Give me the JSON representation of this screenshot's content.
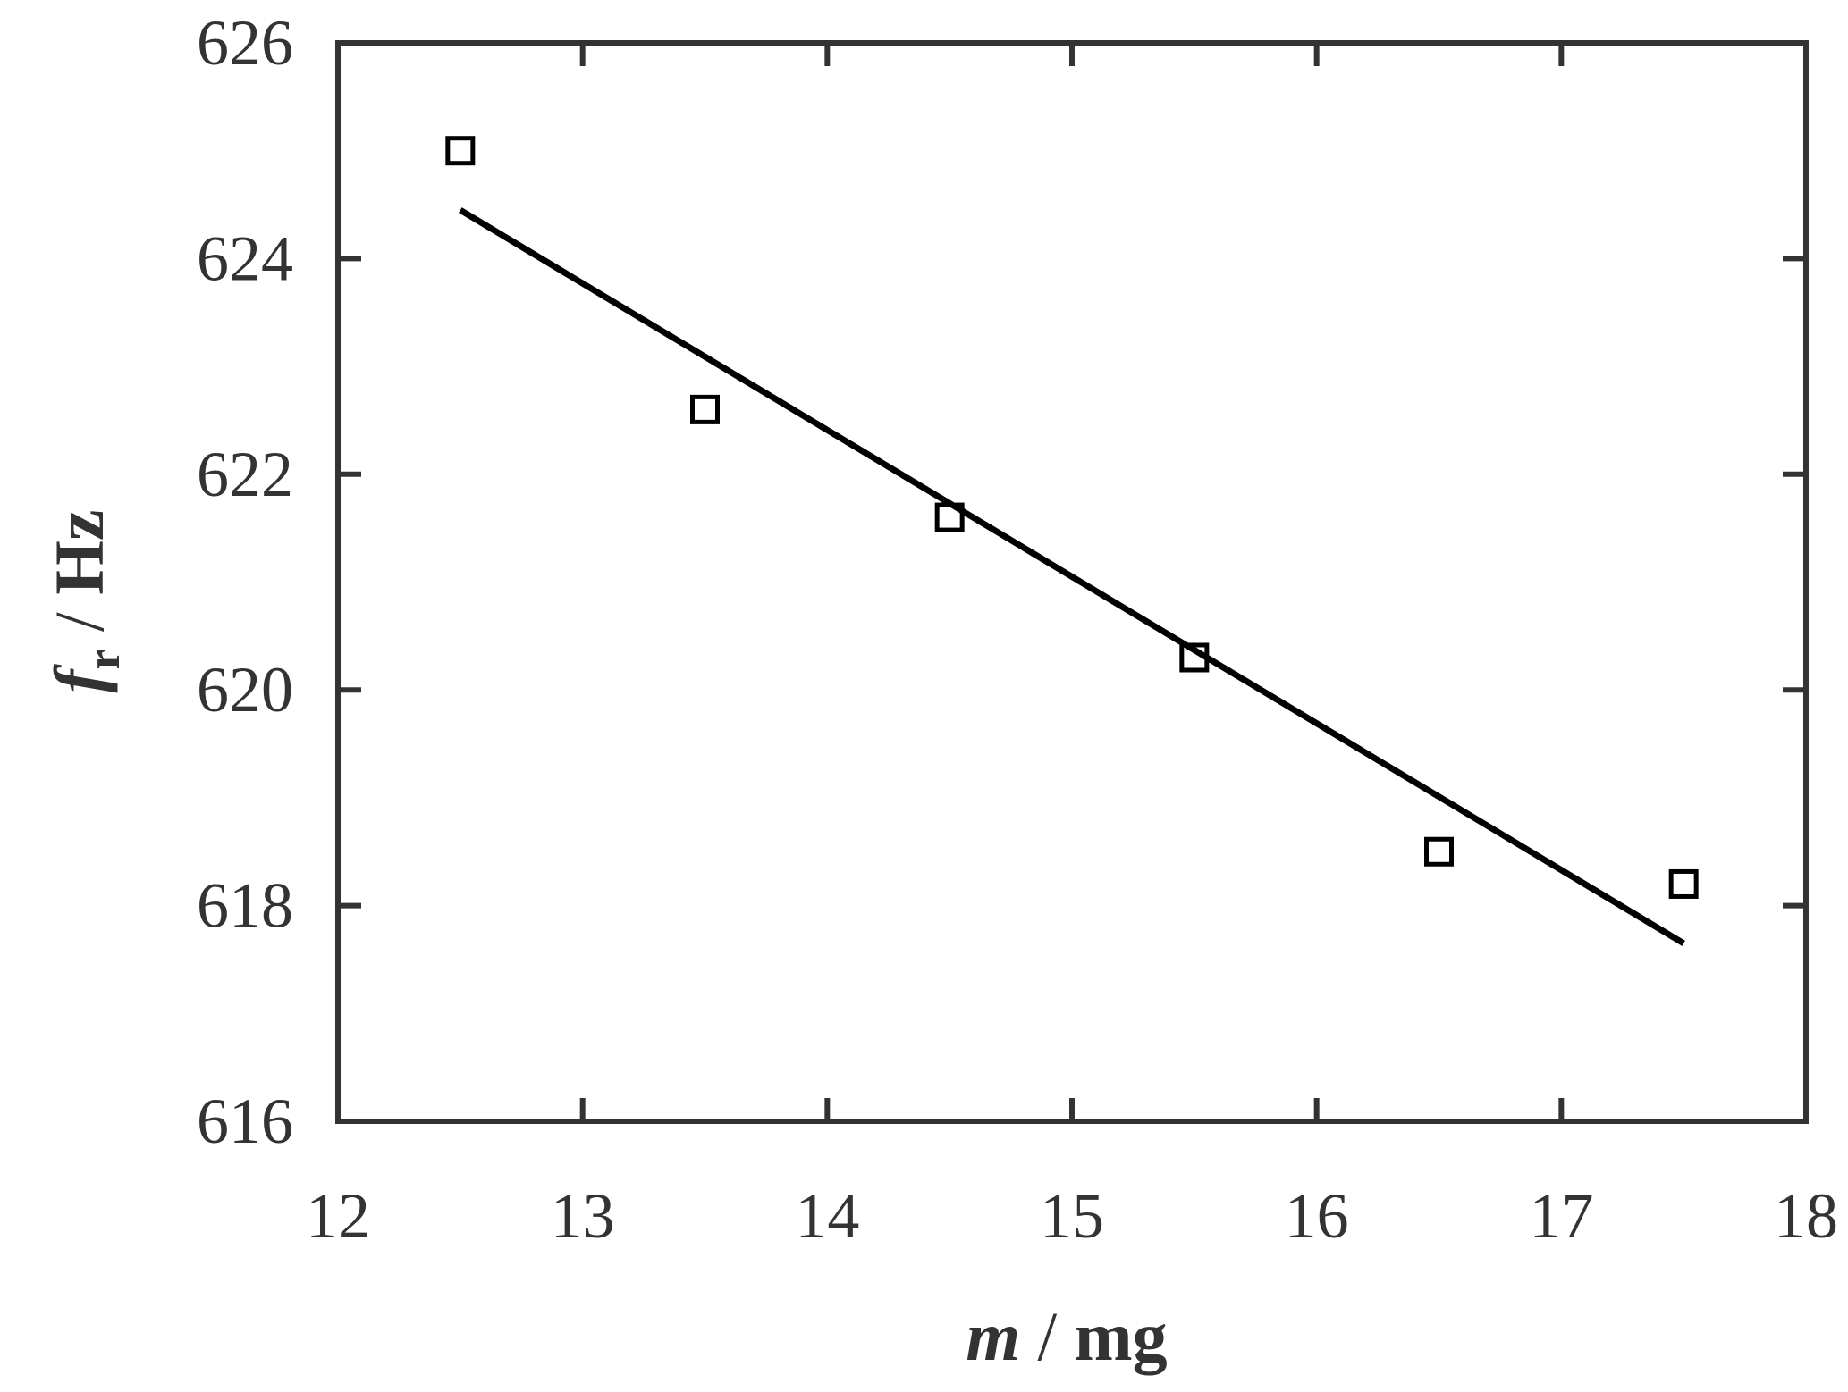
{
  "chart_data": {
    "type": "scatter",
    "xlim": [
      12,
      18
    ],
    "ylim": [
      616,
      626
    ],
    "x_ticks": [
      12,
      13,
      14,
      15,
      16,
      17,
      18
    ],
    "y_ticks": [
      616,
      618,
      620,
      622,
      624,
      626
    ],
    "xlabel": {
      "var": "m",
      "sep": " / ",
      "unit": "mg"
    },
    "ylabel": {
      "var": "f",
      "sub": "r",
      "sep": " / ",
      "unit": "Hz"
    },
    "grid": false,
    "series": [
      {
        "kind": "points",
        "marker": "open-square",
        "x": [
          12.5,
          13.5,
          14.5,
          15.5,
          16.5,
          17.5
        ],
        "y": [
          625.0,
          622.6,
          621.6,
          620.3,
          618.5,
          618.2
        ]
      },
      {
        "kind": "fit-line",
        "x": [
          12.5,
          17.5
        ],
        "y": [
          624.45,
          617.65
        ]
      }
    ],
    "colors": {
      "axis": "#333333",
      "marks": "#000000"
    }
  }
}
